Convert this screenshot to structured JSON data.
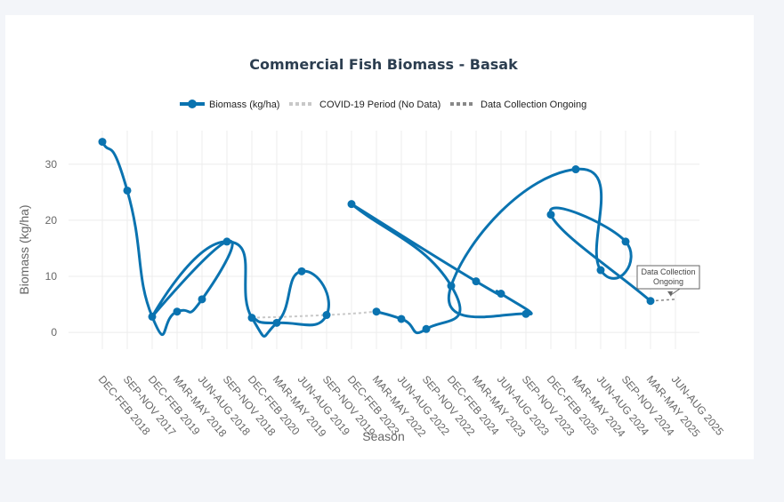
{
  "chart_data": {
    "type": "line",
    "title": "Commercial Fish Biomass - Basak",
    "xlabel": "Season",
    "ylabel": "Biomass (kg/ha)",
    "ylim": [
      -3,
      36
    ],
    "yticks": [
      0,
      10,
      20,
      30
    ],
    "grid": true,
    "legend_position": "top-center",
    "categories": [
      "DEC-FEB 2018",
      "SEP-NOV 2017",
      "DEC-FEB 2019",
      "MAR-MAY 2018",
      "JUN-AUG 2018",
      "SEP-NOV 2018",
      "DEC-FEB 2020",
      "MAR-MAY 2019",
      "JUN-AUG 2019",
      "SEP-NOV 2019",
      "DEC-FEB 2023",
      "MAR-MAY 2022",
      "JUN-AUG 2022",
      "SEP-NOV 2022",
      "DEC-FEB 2024",
      "MAR-MAY 2023",
      "JUN-AUG 2023",
      "SEP-NOV 2023",
      "DEC-FEB 2025",
      "MAR-MAY 2024",
      "JUN-AUG 2024",
      "SEP-NOV 2024",
      "MAR-MAY 2025",
      "JUN-AUG 2025"
    ],
    "series": [
      {
        "name": "Biomass (kg/ha)",
        "color": "#0a73b0",
        "style": "solid",
        "points": [
          [
            "DEC-FEB 2018",
            34.0
          ],
          [
            "SEP-NOV 2017",
            25.3
          ],
          [
            "DEC-FEB 2019",
            2.8
          ],
          [
            "MAR-MAY 2018",
            3.7
          ],
          [
            "JUN-AUG 2018",
            5.9
          ],
          [
            "SEP-NOV 2018",
            16.2
          ],
          [
            "DEC-FEB 2019",
            2.8
          ],
          [
            "SEP-NOV 2018",
            16.2
          ],
          [
            "DEC-FEB 2020",
            2.6
          ],
          [
            "MAR-MAY 2019",
            1.7
          ],
          [
            "JUN-AUG 2019",
            10.9
          ],
          [
            "SEP-NOV 2019",
            3.1
          ],
          [
            "MAR-MAY 2019",
            1.7
          ],
          [
            "DEC-FEB 2020",
            2.6
          ]
        ],
        "points_b": [
          [
            "DEC-FEB 2023",
            22.9
          ],
          [
            "DEC-FEB 2024",
            8.3
          ],
          [
            "SEP-NOV 2022",
            0.6
          ],
          [
            "JUN-AUG 2022",
            2.4
          ],
          [
            "MAR-MAY 2022",
            3.7
          ]
        ],
        "points_c": [
          [
            "DEC-FEB 2023",
            22.9
          ],
          [
            "MAR-MAY 2023",
            9.1
          ],
          [
            "JUN-AUG 2023",
            6.9
          ],
          [
            "SEP-NOV 2023",
            3.3
          ],
          [
            "DEC-FEB 2024",
            8.3
          ],
          [
            "MAR-MAY 2024",
            29.1
          ],
          [
            "JUN-AUG 2024",
            11.1
          ],
          [
            "SEP-NOV 2024",
            16.2
          ],
          [
            "DEC-FEB 2025",
            21.0
          ],
          [
            "MAR-MAY 2025",
            5.6
          ]
        ]
      },
      {
        "name": "COVID-19 Period (No Data)",
        "color": "#c8c8c8",
        "style": "dotted",
        "points": [
          [
            "DEC-FEB 2020",
            2.6
          ],
          [
            "SEP-NOV 2019",
            3.1
          ],
          [
            "MAR-MAY 2022",
            3.7
          ]
        ]
      },
      {
        "name": "Data Collection Ongoing",
        "color": "#888888",
        "style": "dotted",
        "points": [
          [
            "MAR-MAY 2025",
            5.6
          ],
          [
            "JUN-AUG 2025",
            5.9
          ]
        ]
      }
    ],
    "annotation": {
      "text_line1": "Data Collection",
      "text_line2": "Ongoing",
      "at": [
        "JUN-AUG 2025",
        5.9
      ]
    }
  }
}
